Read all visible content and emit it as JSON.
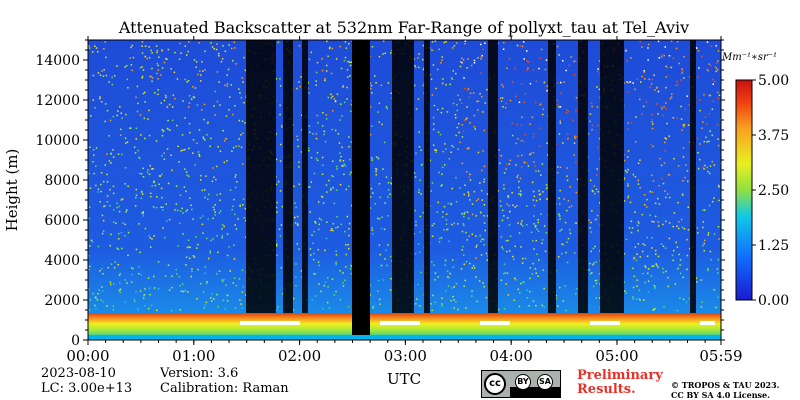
{
  "chart_data": {
    "type": "heatmap",
    "title": "Attenuated Backscatter at 532nm Far-Range of pollyxt_tau at Tel_Aviv",
    "xlabel": "UTC",
    "ylabel": "Height (m)",
    "x_ticks": [
      "00:00",
      "01:00",
      "02:00",
      "03:00",
      "04:00",
      "05:00",
      "05:59"
    ],
    "y_ticks": [
      0,
      2000,
      4000,
      6000,
      8000,
      10000,
      12000,
      14000
    ],
    "ylim": [
      0,
      15000
    ],
    "colorbar": {
      "label": "Mm⁻¹∗sr⁻¹",
      "ticks": [
        "0.00",
        "1.25",
        "2.50",
        "3.75",
        "5.00"
      ],
      "range": [
        0,
        5
      ],
      "colormap": "jet"
    },
    "colors": {
      "no_data": "#000000",
      "low": "#1f4fd8",
      "high": "#e8302a"
    }
  },
  "info": {
    "date": "2023-08-10",
    "lc": "LC: 3.00e+13",
    "version": "Version: 3.6",
    "calibration": "Calibration: Raman"
  },
  "license": {
    "badge_cc": "cc",
    "badge_by": "BY",
    "badge_sa": "SA"
  },
  "preliminary": {
    "line1": "Preliminary",
    "line2": "Results."
  },
  "copyright": {
    "line1": "© TROPOS & TAU 2023.",
    "line2": "CC BY SA 4.0 License."
  }
}
